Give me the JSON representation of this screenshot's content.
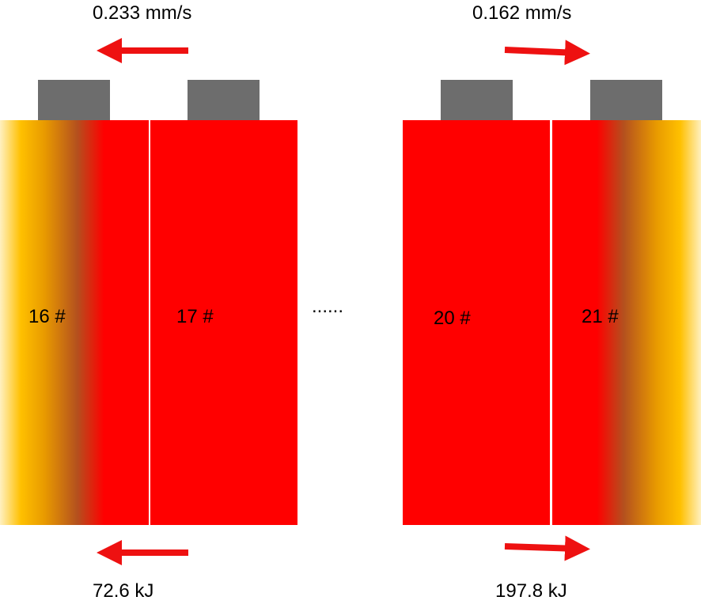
{
  "cells": [
    {
      "label": "16 #"
    },
    {
      "label": "17 #"
    },
    {
      "label": "20 #"
    },
    {
      "label": "21 #"
    }
  ],
  "ellipsis": "......",
  "top_left_speed": "0.233 mm/s",
  "top_right_speed": "0.162 mm/s",
  "bottom_left_energy": "72.6 kJ",
  "bottom_right_energy": "197.8 kJ",
  "colors": {
    "cell_red": "#ff0000",
    "terminal_gray": "#6d6d6d",
    "hot_gold": "#ffc000",
    "arrow_red": "#ee1111"
  }
}
